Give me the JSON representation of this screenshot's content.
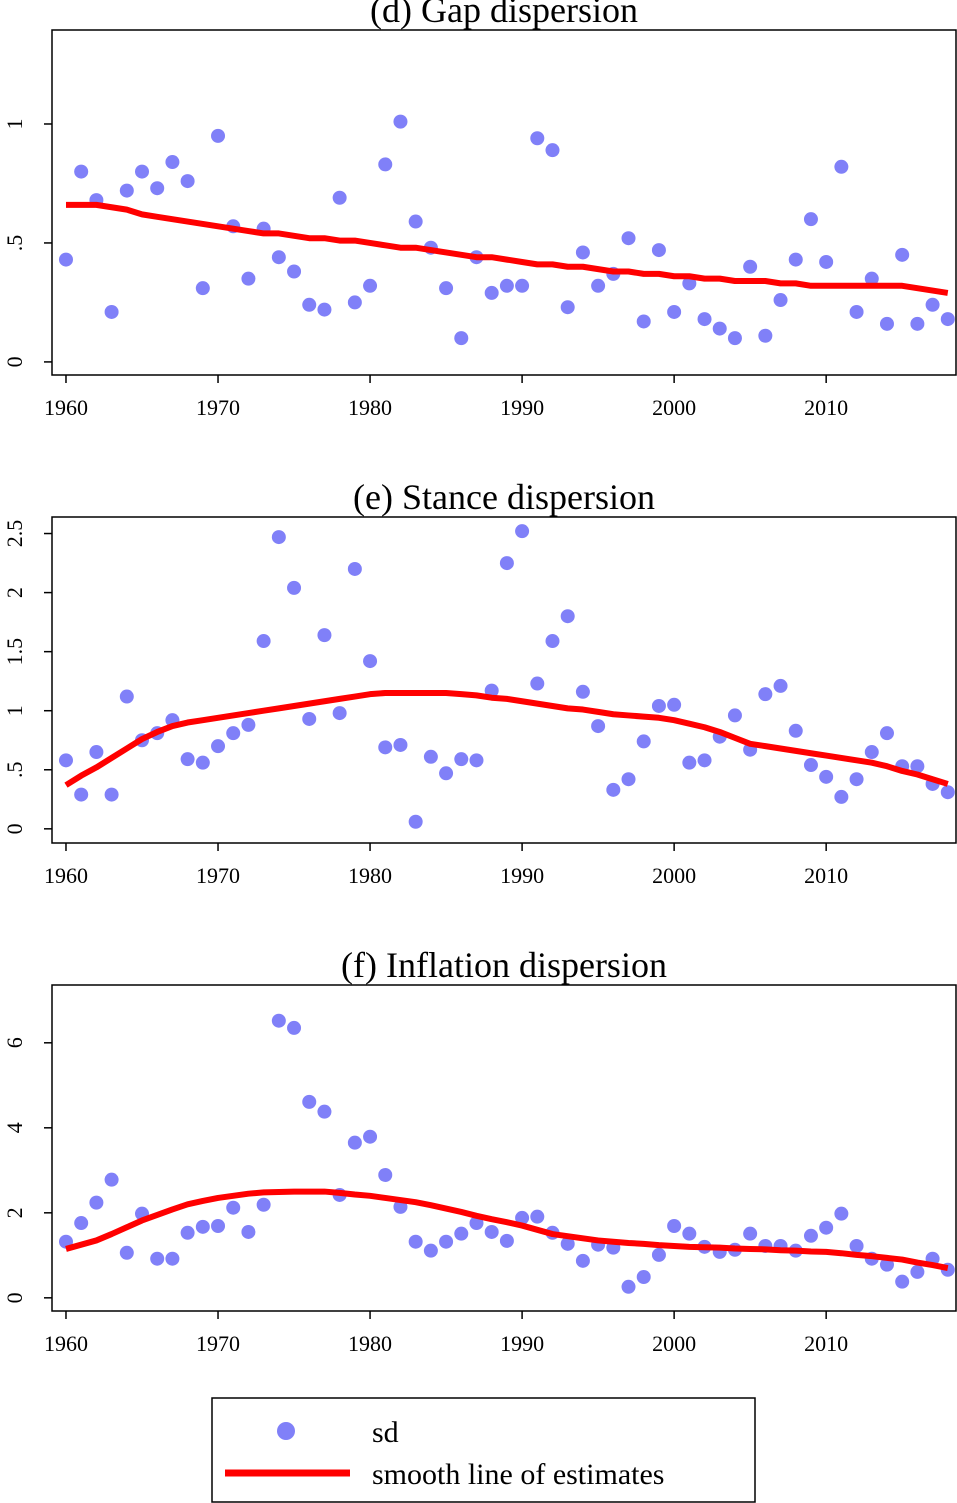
{
  "chart_data": [
    {
      "type": "scatter",
      "title": "(d) Gap dispersion",
      "x": [
        1960,
        1961,
        1962,
        1963,
        1964,
        1965,
        1966,
        1967,
        1968,
        1969,
        1970,
        1971,
        1972,
        1973,
        1974,
        1975,
        1976,
        1977,
        1978,
        1979,
        1980,
        1981,
        1982,
        1983,
        1984,
        1985,
        1986,
        1987,
        1988,
        1989,
        1990,
        1991,
        1992,
        1993,
        1994,
        1995,
        1996,
        1997,
        1998,
        1999,
        2000,
        2001,
        2002,
        2003,
        2004,
        2005,
        2006,
        2007,
        2008,
        2009,
        2010,
        2011,
        2012,
        2013,
        2014,
        2015,
        2016,
        2017,
        2018
      ],
      "xlim": [
        1959.08,
        2018.54
      ],
      "xticks": [
        1960,
        1970,
        1980,
        1990,
        2000,
        2010
      ],
      "ylim": [
        -0.055,
        1.395
      ],
      "yticks": [
        0,
        {
          "value": 0.5,
          "label": ".5"
        },
        1
      ],
      "series": [
        {
          "name": "sd",
          "color": "#8080f8",
          "style": "markers",
          "values": [
            0.43,
            0.8,
            0.68,
            0.21,
            0.72,
            0.8,
            0.73,
            0.84,
            0.76,
            0.31,
            0.95,
            0.57,
            0.35,
            0.56,
            0.44,
            0.38,
            0.24,
            0.22,
            0.69,
            0.25,
            0.32,
            0.83,
            1.01,
            0.59,
            0.48,
            0.31,
            0.1,
            0.44,
            0.29,
            0.32,
            0.32,
            0.94,
            0.89,
            0.23,
            0.46,
            0.32,
            0.37,
            0.52,
            0.17,
            0.47,
            0.21,
            0.33,
            0.18,
            0.14,
            0.1,
            0.4,
            0.11,
            0.26,
            0.43,
            0.6,
            0.42,
            0.82,
            0.21,
            0.35,
            0.16,
            0.45,
            0.16,
            0.24,
            0.18
          ]
        },
        {
          "name": "smooth line of estimates",
          "color": "#ff0000",
          "style": "line",
          "values": [
            0.66,
            0.66,
            0.66,
            0.65,
            0.64,
            0.62,
            0.61,
            0.6,
            0.59,
            0.58,
            0.57,
            0.56,
            0.55,
            0.54,
            0.54,
            0.53,
            0.52,
            0.52,
            0.51,
            0.51,
            0.5,
            0.49,
            0.48,
            0.48,
            0.47,
            0.46,
            0.45,
            0.44,
            0.44,
            0.43,
            0.42,
            0.41,
            0.41,
            0.4,
            0.4,
            0.39,
            0.38,
            0.38,
            0.37,
            0.37,
            0.36,
            0.36,
            0.35,
            0.35,
            0.34,
            0.34,
            0.34,
            0.33,
            0.33,
            0.32,
            0.32,
            0.32,
            0.32,
            0.32,
            0.32,
            0.32,
            0.31,
            0.3,
            0.29
          ]
        }
      ]
    },
    {
      "type": "scatter",
      "title": "(e) Stance dispersion",
      "x": [
        1960,
        1961,
        1962,
        1963,
        1964,
        1965,
        1966,
        1967,
        1968,
        1969,
        1970,
        1971,
        1972,
        1973,
        1974,
        1975,
        1976,
        1977,
        1978,
        1979,
        1980,
        1981,
        1982,
        1983,
        1984,
        1985,
        1986,
        1987,
        1988,
        1989,
        1990,
        1991,
        1992,
        1993,
        1994,
        1995,
        1996,
        1997,
        1998,
        1999,
        2000,
        2001,
        2002,
        2003,
        2004,
        2005,
        2006,
        2007,
        2008,
        2009,
        2010,
        2011,
        2012,
        2013,
        2014,
        2015,
        2016,
        2017,
        2018
      ],
      "xlim": [
        1959.08,
        2018.54
      ],
      "xticks": [
        1960,
        1970,
        1980,
        1990,
        2000,
        2010
      ],
      "ylim": [
        -0.12,
        2.64
      ],
      "yticks": [
        0,
        {
          "value": 0.5,
          "label": ".5"
        },
        1,
        1.5,
        2,
        2.5
      ],
      "series": [
        {
          "color": "#8080f8",
          "style": "markers",
          "values": [
            0.58,
            0.29,
            0.65,
            0.29,
            1.12,
            0.75,
            0.81,
            0.92,
            0.59,
            0.56,
            0.7,
            0.81,
            0.88,
            1.59,
            2.47,
            2.04,
            0.93,
            1.64,
            0.98,
            2.2,
            1.42,
            0.69,
            0.71,
            0.06,
            0.61,
            0.47,
            0.59,
            0.58,
            1.17,
            2.25,
            2.52,
            1.23,
            1.59,
            1.8,
            1.16,
            0.87,
            0.33,
            0.42,
            0.74,
            1.04,
            1.05,
            0.56,
            0.58,
            0.78,
            0.96,
            0.67,
            1.14,
            1.21,
            0.83,
            0.54,
            0.44,
            0.27,
            0.42,
            0.65,
            0.81,
            0.53,
            0.53,
            0.38,
            0.31
          ]
        },
        {
          "color": "#ff0000",
          "style": "line",
          "values": [
            0.37,
            0.45,
            0.52,
            0.6,
            0.68,
            0.76,
            0.82,
            0.87,
            0.9,
            0.92,
            0.94,
            0.96,
            0.98,
            1.0,
            1.02,
            1.04,
            1.06,
            1.08,
            1.1,
            1.12,
            1.14,
            1.15,
            1.15,
            1.15,
            1.15,
            1.15,
            1.14,
            1.13,
            1.11,
            1.1,
            1.08,
            1.06,
            1.04,
            1.02,
            1.01,
            0.99,
            0.97,
            0.96,
            0.95,
            0.94,
            0.92,
            0.89,
            0.86,
            0.82,
            0.77,
            0.72,
            0.7,
            0.68,
            0.66,
            0.64,
            0.62,
            0.6,
            0.58,
            0.56,
            0.53,
            0.49,
            0.46,
            0.42,
            0.38
          ]
        }
      ]
    },
    {
      "type": "scatter",
      "title": "(f) Inflation dispersion",
      "x": [
        1960,
        1961,
        1962,
        1963,
        1964,
        1965,
        1966,
        1967,
        1968,
        1969,
        1970,
        1971,
        1972,
        1973,
        1974,
        1975,
        1976,
        1977,
        1978,
        1979,
        1980,
        1981,
        1982,
        1983,
        1984,
        1985,
        1986,
        1987,
        1988,
        1989,
        1990,
        1991,
        1992,
        1993,
        1994,
        1995,
        1996,
        1997,
        1998,
        1999,
        2000,
        2001,
        2002,
        2003,
        2004,
        2005,
        2006,
        2007,
        2008,
        2009,
        2010,
        2011,
        2012,
        2013,
        2014,
        2015,
        2016,
        2017,
        2018
      ],
      "xlim": [
        1959.08,
        2018.54
      ],
      "xticks": [
        1960,
        1970,
        1980,
        1990,
        2000,
        2010
      ],
      "ylim": [
        -0.31,
        7.36
      ],
      "yticks": [
        0,
        2,
        4,
        6
      ],
      "series": [
        {
          "color": "#8080f8",
          "style": "markers",
          "values": [
            1.32,
            1.76,
            2.24,
            2.78,
            1.06,
            1.98,
            0.92,
            0.92,
            1.53,
            1.67,
            1.69,
            2.12,
            1.55,
            2.19,
            6.52,
            6.35,
            4.61,
            4.38,
            2.42,
            3.65,
            3.79,
            2.89,
            2.14,
            1.32,
            1.11,
            1.32,
            1.51,
            1.76,
            1.55,
            1.34,
            1.88,
            1.91,
            1.53,
            1.27,
            0.87,
            1.25,
            1.18,
            0.26,
            0.49,
            1.01,
            1.69,
            1.51,
            1.2,
            1.08,
            1.13,
            1.51,
            1.22,
            1.22,
            1.11,
            1.46,
            1.65,
            1.98,
            1.22,
            0.92,
            0.78,
            0.38,
            0.61,
            0.92,
            0.66
          ]
        },
        {
          "color": "#ff0000",
          "style": "line",
          "values": [
            1.15,
            1.25,
            1.35,
            1.5,
            1.66,
            1.82,
            1.95,
            2.08,
            2.2,
            2.28,
            2.35,
            2.4,
            2.45,
            2.48,
            2.49,
            2.5,
            2.5,
            2.5,
            2.47,
            2.43,
            2.4,
            2.35,
            2.3,
            2.25,
            2.18,
            2.1,
            2.02,
            1.93,
            1.85,
            1.78,
            1.7,
            1.6,
            1.5,
            1.45,
            1.4,
            1.35,
            1.32,
            1.29,
            1.27,
            1.24,
            1.22,
            1.2,
            1.19,
            1.18,
            1.16,
            1.15,
            1.14,
            1.12,
            1.11,
            1.09,
            1.08,
            1.05,
            1.01,
            0.98,
            0.94,
            0.9,
            0.83,
            0.77,
            0.7
          ]
        }
      ]
    }
  ]
}
